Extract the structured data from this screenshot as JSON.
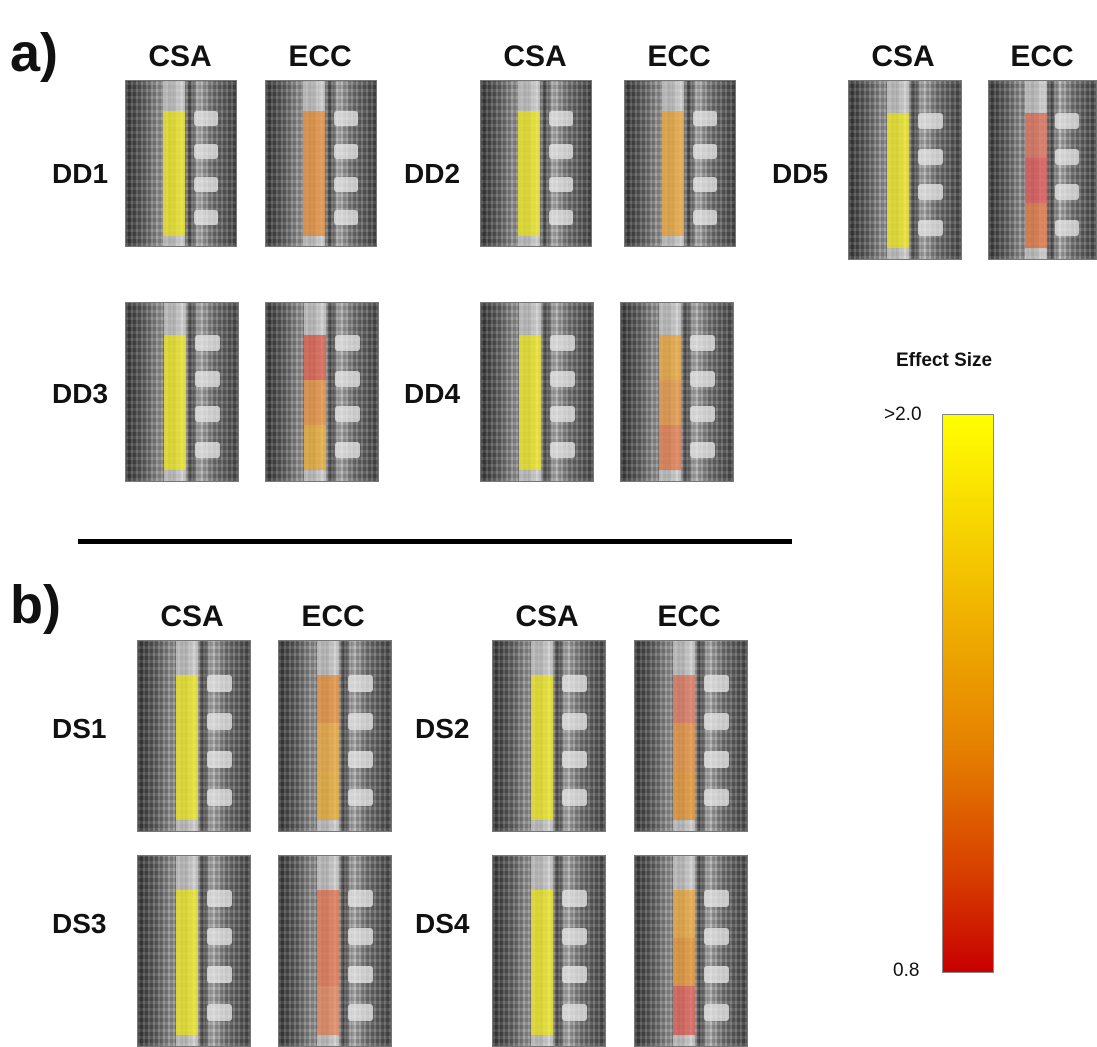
{
  "sections": [
    {
      "label": "a)",
      "panels": [
        {
          "name": "DD1",
          "csa": "CSA",
          "ecc": "ECC",
          "csa_color": "#f2ea32",
          "ecc_colors": [
            "#eb9a4a",
            "#eb9a4a",
            "#eb9a4a"
          ]
        },
        {
          "name": "DD2",
          "csa": "CSA",
          "ecc": "ECC",
          "csa_color": "#f2ea32",
          "ecc_colors": [
            "#efb04a",
            "#efb04a",
            "#efb04a"
          ]
        },
        {
          "name": "DD5",
          "csa": "CSA",
          "ecc": "ECC",
          "csa_color": "#f2ea32",
          "ecc_colors": [
            "#e27a64",
            "#e06060",
            "#e58050"
          ]
        },
        {
          "name": "DD3",
          "csa": "CSA",
          "ecc": "ECC",
          "csa_color": "#f2ea32",
          "ecc_colors": [
            "#e26a58",
            "#eb9a4a",
            "#eeb443"
          ]
        },
        {
          "name": "DD4",
          "csa": "CSA",
          "ecc": "ECC",
          "csa_color": "#f2ea32",
          "ecc_colors": [
            "#efb04a",
            "#eba04e",
            "#e8885a"
          ]
        }
      ]
    },
    {
      "label": "b)",
      "panels": [
        {
          "name": "DS1",
          "csa": "CSA",
          "ecc": "ECC",
          "csa_color": "#f2ea32",
          "ecc_colors": [
            "#eb9a4a",
            "#efb04a",
            "#eeb443"
          ]
        },
        {
          "name": "DS2",
          "csa": "CSA",
          "ecc": "ECC",
          "csa_color": "#f2ea32",
          "ecc_colors": [
            "#e3826a",
            "#eb9a4a",
            "#ec9e40"
          ]
        },
        {
          "name": "DS3",
          "csa": "CSA",
          "ecc": "ECC",
          "csa_color": "#f2ea32",
          "ecc_colors": [
            "#e8805e",
            "#e8805e",
            "#e8906a"
          ]
        },
        {
          "name": "DS4",
          "csa": "CSA",
          "ecc": "ECC",
          "csa_color": "#f2ea32",
          "ecc_colors": [
            "#efb04a",
            "#ec9e40",
            "#e06a60"
          ]
        }
      ]
    }
  ],
  "colorbar": {
    "title": "Effect Size",
    "max_label": ">2.0",
    "min_label": "0.8",
    "max_color": "#ffff00",
    "min_color": "#c80000"
  }
}
